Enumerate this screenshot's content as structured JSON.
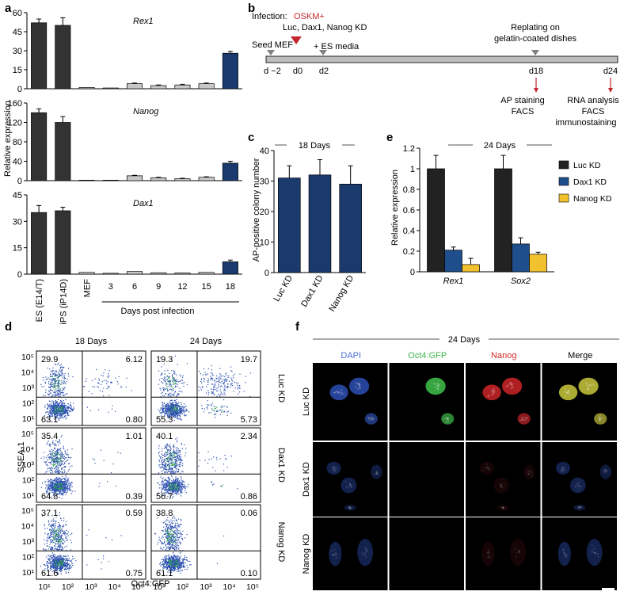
{
  "panel_labels": [
    "a",
    "b",
    "c",
    "d",
    "e",
    "f"
  ],
  "chart_data": [
    {
      "panel": "a",
      "type": "bar",
      "ylabel": "Relative expression",
      "categories": [
        "ES (E14/T)",
        "iPS (iP14D)",
        "MEF",
        "3",
        "6",
        "9",
        "12",
        "15",
        "18"
      ],
      "xgroup_label": "Days post infection",
      "colors": [
        "#333333",
        "#333333",
        "#c8c8c8",
        "#c8c8c8",
        "#c8c8c8",
        "#c8c8c8",
        "#c8c8c8",
        "#c8c8c8",
        "#1a3a6e"
      ],
      "subplots": [
        {
          "gene": "Rex1",
          "ylim": [
            0,
            60
          ],
          "yticks": [
            "0",
            "15",
            "30",
            "45",
            "60"
          ],
          "values": [
            52,
            50,
            1,
            0.6,
            4,
            2.5,
            3,
            4,
            28
          ],
          "errors": [
            3,
            6,
            0.3,
            0.2,
            0.5,
            0.5,
            0.5,
            0.5,
            1.5
          ]
        },
        {
          "gene": "Nanog",
          "ylim": [
            0,
            160
          ],
          "yticks": [
            "0",
            "40",
            "80",
            "120",
            "160"
          ],
          "values": [
            140,
            120,
            1,
            1,
            10,
            6,
            4,
            7,
            36
          ],
          "errors": [
            8,
            12,
            0.3,
            0.3,
            1,
            1,
            1,
            1,
            4
          ]
        },
        {
          "gene": "Dax1",
          "ylim": [
            0,
            45
          ],
          "yticks": [
            "0",
            "15",
            "30",
            "45"
          ],
          "values": [
            35,
            36,
            1,
            0.5,
            1.5,
            0.8,
            0.7,
            1,
            7
          ],
          "errors": [
            4,
            2,
            0.3,
            0.2,
            0.3,
            0.2,
            0.2,
            0.3,
            1
          ]
        }
      ]
    },
    {
      "panel": "c",
      "type": "bar",
      "title": "18 Days",
      "ylabel": "AP-positive colony number",
      "categories": [
        "Luc KD",
        "Dax1 KD",
        "Nanog KD"
      ],
      "values": [
        31,
        32,
        29
      ],
      "errors": [
        4,
        5,
        6
      ],
      "ylim": [
        0,
        40
      ],
      "yticks": [
        "0",
        "10",
        "20",
        "30",
        "40"
      ],
      "color": "#1a3a6e"
    },
    {
      "panel": "e",
      "type": "bar",
      "title": "24 Days",
      "ylabel": "Relative expression",
      "categories": [
        "Rex1",
        "Sox2"
      ],
      "series": [
        {
          "name": "Luc KD",
          "color": "#222222",
          "values": [
            1.0,
            1.0
          ],
          "errors": [
            0.13,
            0.13
          ]
        },
        {
          "name": "Dax1 KD",
          "color": "#1f4e8c",
          "values": [
            0.21,
            0.27
          ],
          "errors": [
            0.03,
            0.06
          ]
        },
        {
          "name": "Nanog KD",
          "color": "#f2c12e",
          "values": [
            0.07,
            0.17
          ],
          "errors": [
            0.06,
            0.02
          ]
        }
      ],
      "ylim": [
        0,
        1.2
      ],
      "yticks": [
        "0",
        "0.2",
        "0.4",
        "0.6",
        "0.8",
        "1",
        "1.2"
      ],
      "legend": "right"
    },
    {
      "panel": "d",
      "type": "scatter",
      "xlabel": "Oct4:GFP",
      "ylabel": "SSEA-1",
      "columns": [
        "18 Days",
        "24 Days"
      ],
      "rows": [
        "Luc KD",
        "Dax1 KD",
        "Nanog KD"
      ],
      "xticks": [
        "10¹",
        "10²",
        "10³",
        "10⁴",
        "10⁵"
      ],
      "yticks": [
        "10¹",
        "10²",
        "10³",
        "10⁴",
        "10⁵"
      ],
      "quadrant_values": [
        [
          [
            "29.9",
            "6.12",
            "63.1",
            "0.80"
          ],
          [
            "19.3",
            "19.7",
            "55.3",
            "5.73"
          ]
        ],
        [
          [
            "35.4",
            "1.01",
            "64.8",
            "0.39"
          ],
          [
            "40.1",
            "2.34",
            "56.7",
            "0.86"
          ]
        ],
        [
          [
            "37.1",
            "0.59",
            "61.6",
            "0.75"
          ],
          [
            "38.8",
            "0.06",
            "61.1",
            "0.10"
          ]
        ]
      ]
    }
  ],
  "panel_b": {
    "infection_label": "Infection:",
    "oskm": "OSKM+",
    "kd_label": "Luc, Dax1, Nanog KD",
    "seed_mef": "Seed MEF",
    "es_media": "+ ES media",
    "replating_1": "Replating on",
    "replating_2": "gelatin-coated dishes",
    "days": [
      "d −2",
      "d0",
      "d2",
      "d18",
      "d24"
    ],
    "ap_1": "AP staining",
    "ap_2": "FACS",
    "rna_1": "RNA analysis",
    "rna_2": "FACS",
    "rna_3": "immunostaining",
    "accent": "#c0272d"
  },
  "panel_f": {
    "title": "24 Days",
    "columns": [
      "DAPI",
      "Oct4:GFP",
      "Nanog",
      "Merge"
    ],
    "column_colors": [
      "#4a6fd8",
      "#3fb54a",
      "#d62a2a",
      "#000000"
    ],
    "rows": [
      "Luc KD",
      "Dax1 KD",
      "Nanog KD"
    ]
  }
}
